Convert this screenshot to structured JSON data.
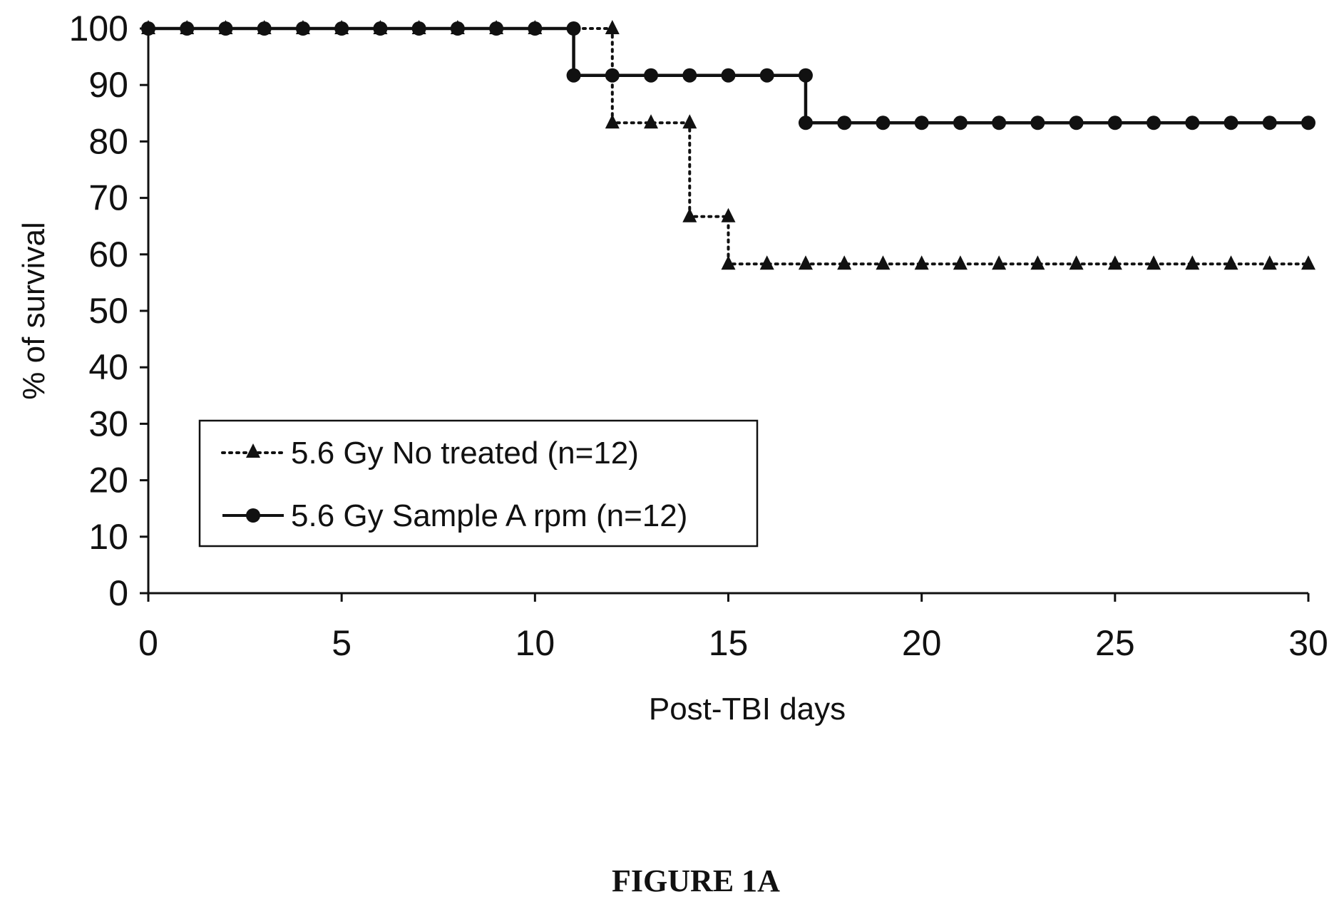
{
  "chart_data": {
    "type": "line",
    "xlabel": "Post-TBI days",
    "ylabel": "% of survival",
    "xlim": [
      0,
      30
    ],
    "ylim": [
      0,
      100
    ],
    "x_ticks": [
      0,
      5,
      10,
      15,
      20,
      25,
      30
    ],
    "y_ticks": [
      0,
      10,
      20,
      30,
      40,
      50,
      60,
      70,
      80,
      90,
      100
    ],
    "grid": false,
    "legend_position": "lower-left",
    "series": [
      {
        "name": "5.6 Gy No treated (n=12)",
        "line_style": "dotted",
        "marker": "triangle",
        "step": true,
        "x": [
          0,
          1,
          2,
          3,
          4,
          5,
          6,
          7,
          8,
          9,
          10,
          11,
          12,
          13,
          14,
          15,
          16,
          17,
          18,
          19,
          20,
          21,
          22,
          23,
          24,
          25,
          26,
          27,
          28,
          29,
          30
        ],
        "y": [
          100,
          100,
          100,
          100,
          100,
          100,
          100,
          100,
          100,
          100,
          100,
          100,
          83.3,
          83.3,
          66.7,
          58.3,
          58.3,
          58.3,
          58.3,
          58.3,
          58.3,
          58.3,
          58.3,
          58.3,
          58.3,
          58.3,
          58.3,
          58.3,
          58.3,
          58.3,
          58.3
        ],
        "marker_points": [
          [
            0,
            100
          ],
          [
            1,
            100
          ],
          [
            2,
            100
          ],
          [
            3,
            100
          ],
          [
            4,
            100
          ],
          [
            5,
            100
          ],
          [
            6,
            100
          ],
          [
            7,
            100
          ],
          [
            8,
            100
          ],
          [
            9,
            100
          ],
          [
            10,
            100
          ],
          [
            12,
            100
          ],
          [
            12,
            83.3
          ],
          [
            13,
            83.3
          ],
          [
            14,
            83.3
          ],
          [
            14,
            66.7
          ],
          [
            15,
            66.7
          ],
          [
            15,
            58.3
          ],
          [
            16,
            58.3
          ],
          [
            17,
            58.3
          ],
          [
            18,
            58.3
          ],
          [
            19,
            58.3
          ],
          [
            20,
            58.3
          ],
          [
            21,
            58.3
          ],
          [
            22,
            58.3
          ],
          [
            23,
            58.3
          ],
          [
            24,
            58.3
          ],
          [
            25,
            58.3
          ],
          [
            26,
            58.3
          ],
          [
            27,
            58.3
          ],
          [
            28,
            58.3
          ],
          [
            29,
            58.3
          ],
          [
            30,
            58.3
          ]
        ]
      },
      {
        "name": "5.6 Gy Sample A rpm (n=12)",
        "line_style": "solid",
        "marker": "circle",
        "step": true,
        "x": [
          0,
          1,
          2,
          3,
          4,
          5,
          6,
          7,
          8,
          9,
          10,
          11,
          12,
          13,
          14,
          15,
          16,
          17,
          18,
          19,
          20,
          21,
          22,
          23,
          24,
          25,
          26,
          27,
          28,
          29,
          30
        ],
        "y": [
          100,
          100,
          100,
          100,
          100,
          100,
          100,
          100,
          100,
          100,
          100,
          91.7,
          91.7,
          91.7,
          91.7,
          91.7,
          91.7,
          83.3,
          83.3,
          83.3,
          83.3,
          83.3,
          83.3,
          83.3,
          83.3,
          83.3,
          83.3,
          83.3,
          83.3,
          83.3,
          83.3
        ],
        "marker_points": [
          [
            0,
            100
          ],
          [
            1,
            100
          ],
          [
            2,
            100
          ],
          [
            3,
            100
          ],
          [
            4,
            100
          ],
          [
            5,
            100
          ],
          [
            6,
            100
          ],
          [
            7,
            100
          ],
          [
            8,
            100
          ],
          [
            9,
            100
          ],
          [
            10,
            100
          ],
          [
            11,
            100
          ],
          [
            11,
            91.7
          ],
          [
            12,
            91.7
          ],
          [
            13,
            91.7
          ],
          [
            14,
            91.7
          ],
          [
            15,
            91.7
          ],
          [
            16,
            91.7
          ],
          [
            17,
            91.7
          ],
          [
            17,
            83.3
          ],
          [
            18,
            83.3
          ],
          [
            19,
            83.3
          ],
          [
            20,
            83.3
          ],
          [
            21,
            83.3
          ],
          [
            22,
            83.3
          ],
          [
            23,
            83.3
          ],
          [
            24,
            83.3
          ],
          [
            25,
            83.3
          ],
          [
            26,
            83.3
          ],
          [
            27,
            83.3
          ],
          [
            28,
            83.3
          ],
          [
            29,
            83.3
          ],
          [
            30,
            83.3
          ]
        ]
      }
    ]
  },
  "figure_caption": "FIGURE 1A",
  "colors": {
    "ink": "#111111",
    "background": "#ffffff"
  }
}
